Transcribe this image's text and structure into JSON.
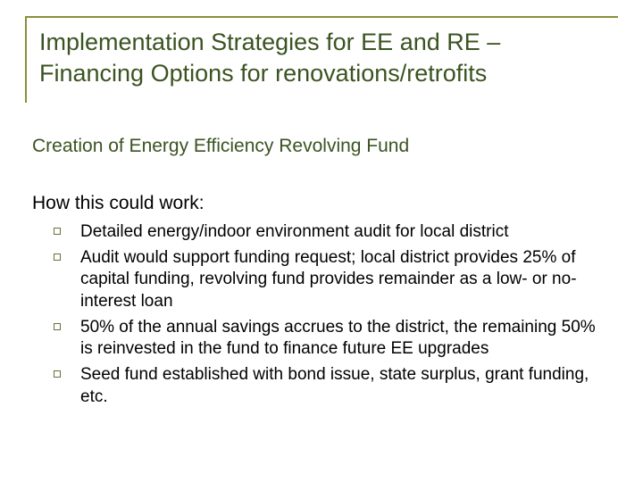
{
  "colors": {
    "title_border": "#8a8f3a",
    "title_text": "#3b5321",
    "subhead_text": "#3b5321",
    "body_text": "#000000",
    "bullet_border": "#6b7034",
    "background": "#ffffff"
  },
  "typography": {
    "title_fontsize": 27,
    "subhead_fontsize": 21,
    "body_fontsize": 19,
    "font_family": "Arial"
  },
  "title": "Implementation Strategies for EE and RE – Financing Options for renovations/retrofits",
  "subhead": "Creation of Energy Efficiency Revolving Fund",
  "how_label": "How this could work:",
  "bullets": [
    "Detailed energy/indoor environment audit for local district",
    "Audit would support funding request; local district provides 25% of capital funding, revolving fund provides remainder as a low- or no-interest loan",
    "50% of the annual savings accrues to the district, the remaining 50% is reinvested in the fund to finance future EE upgrades",
    "Seed fund established with bond issue, state surplus, grant funding, etc."
  ]
}
